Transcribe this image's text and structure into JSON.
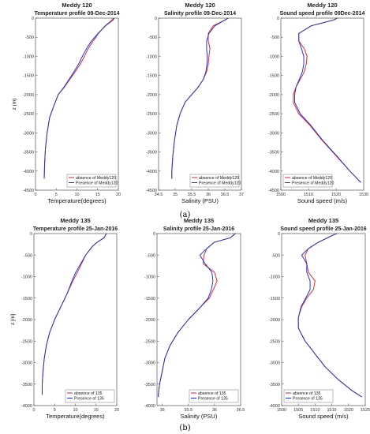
{
  "colors": {
    "absence": "#e0212a",
    "presence": "#1f2bd6",
    "axis": "#555555",
    "background": "#ffffff"
  },
  "captions": [
    "(a)",
    "(b)"
  ],
  "chart_data": [
    {
      "type": "line",
      "suptitle": "Meddy 120",
      "title": "Temperature profile 09-Dec-2014",
      "xlabel": "Temperature(degrees)",
      "ylabel": "z (m)",
      "xlim": [
        0,
        20
      ],
      "ylim": [
        -4500,
        0
      ],
      "xticks": [
        0,
        5,
        10,
        15,
        20
      ],
      "yticks": [
        0,
        -500,
        -1000,
        -1500,
        -2000,
        -2500,
        -3000,
        -3500,
        -4000,
        -4500
      ],
      "legend": "bottom-right",
      "series": [
        {
          "name": "absence of Meddy120",
          "x": [
            18.8,
            18.5,
            16.8,
            15.2,
            13.9,
            12.7,
            11.8,
            10.8,
            9.6,
            8.3,
            7.0,
            5.5,
            4.4,
            3.4,
            2.8,
            2.4,
            2.2,
            2.1
          ],
          "y": [
            0,
            -50,
            -200,
            -400,
            -600,
            -800,
            -1000,
            -1200,
            -1400,
            -1600,
            -1800,
            -2000,
            -2300,
            -2600,
            -3000,
            -3400,
            -3800,
            -4200
          ]
        },
        {
          "name": "Presence of Meddy120",
          "x": [
            19.0,
            18.7,
            16.9,
            15.1,
            13.5,
            12.3,
            11.3,
            10.4,
            9.3,
            8.1,
            6.9,
            5.5,
            4.4,
            3.4,
            2.8,
            2.4,
            2.2,
            2.1
          ],
          "y": [
            0,
            -50,
            -200,
            -400,
            -600,
            -800,
            -1000,
            -1200,
            -1400,
            -1600,
            -1800,
            -2000,
            -2300,
            -2600,
            -3000,
            -3400,
            -3800,
            -4200
          ]
        }
      ]
    },
    {
      "type": "line",
      "suptitle": "Meddy 120",
      "title": "Salinity profile 09-Dec-2014",
      "xlabel": "Salinity (PSU)",
      "ylabel": "",
      "xlim": [
        34.5,
        37
      ],
      "ylim": [
        -4500,
        0
      ],
      "xticks": [
        34.5,
        35,
        35.5,
        36,
        36.5,
        37
      ],
      "yticks": [
        0,
        -500,
        -1000,
        -1500,
        -2000,
        -2500,
        -3000,
        -3500,
        -4000,
        -4500
      ],
      "legend": "bottom-right",
      "series": [
        {
          "name": "absence of Meddy120",
          "x": [
            36.6,
            36.5,
            36.15,
            36.0,
            36.0,
            36.05,
            36.02,
            36.0,
            35.95,
            35.85,
            35.7,
            35.5,
            35.3,
            35.15,
            35.05,
            34.98,
            34.93,
            34.9,
            34.9
          ],
          "y": [
            0,
            -50,
            -200,
            -400,
            -600,
            -800,
            -1000,
            -1200,
            -1400,
            -1600,
            -1800,
            -2000,
            -2200,
            -2500,
            -2800,
            -3200,
            -3600,
            -4000,
            -4200
          ]
        },
        {
          "name": "Presence of Meddy120",
          "x": [
            36.6,
            36.5,
            36.2,
            36.02,
            35.95,
            35.95,
            35.97,
            35.96,
            35.93,
            35.85,
            35.7,
            35.5,
            35.3,
            35.15,
            35.05,
            34.98,
            34.93,
            34.9,
            34.9
          ],
          "y": [
            0,
            -50,
            -200,
            -400,
            -600,
            -800,
            -1000,
            -1200,
            -1400,
            -1600,
            -1800,
            -2000,
            -2200,
            -2500,
            -2800,
            -3200,
            -3600,
            -4000,
            -4200
          ]
        }
      ]
    },
    {
      "type": "line",
      "suptitle": "Meddy 120",
      "title": "Sound speed profile 09Dec-2014",
      "xlabel": "Sound speed (m/s)",
      "ylabel": "",
      "xlim": [
        1500,
        1530
      ],
      "ylim": [
        -4500,
        0
      ],
      "xticks": [
        1500,
        1510,
        1520,
        1530
      ],
      "yticks": [
        0,
        -500,
        -1000,
        -1500,
        -2000,
        -2500,
        -3000,
        -3500,
        -4000,
        -4500
      ],
      "legend": "bottom-left",
      "series": [
        {
          "name": "absence of Meddy120",
          "x": [
            1520.5,
            1519,
            1511,
            1506.5,
            1506.5,
            1508.5,
            1509.5,
            1509.2,
            1508.5,
            1507,
            1505.5,
            1504.5,
            1504.5,
            1506.5,
            1510.5,
            1515,
            1520,
            1525,
            1529
          ],
          "y": [
            0,
            -50,
            -200,
            -400,
            -600,
            -800,
            -1000,
            -1200,
            -1400,
            -1600,
            -1800,
            -2000,
            -2200,
            -2500,
            -2800,
            -3200,
            -3600,
            -4000,
            -4300
          ]
        },
        {
          "name": "Presence of Meddy120",
          "x": [
            1520.5,
            1519,
            1511,
            1506.5,
            1506.5,
            1507.5,
            1508.3,
            1508.3,
            1507.8,
            1506.7,
            1505.5,
            1505,
            1505,
            1507,
            1510.8,
            1515.2,
            1520.2,
            1525,
            1529
          ],
          "y": [
            0,
            -50,
            -200,
            -400,
            -600,
            -800,
            -1000,
            -1200,
            -1400,
            -1600,
            -1800,
            -2000,
            -2200,
            -2500,
            -2800,
            -3200,
            -3600,
            -4000,
            -4300
          ]
        }
      ]
    },
    {
      "type": "line",
      "suptitle": "Meddy 135",
      "title": "Temperature profile 25-Jan-2016",
      "xlabel": "Temperature(degrees)",
      "ylabel": "z [m]",
      "xlim": [
        0,
        20
      ],
      "ylim": [
        -4000,
        0
      ],
      "xticks": [
        0,
        5,
        10,
        15,
        20
      ],
      "yticks": [
        0,
        -500,
        -1000,
        -1500,
        -2000,
        -2500,
        -3000,
        -3500,
        -4000
      ],
      "legend": "bottom-right",
      "series": [
        {
          "name": "absence of 135",
          "x": [
            17.5,
            16.9,
            15.3,
            14.1,
            12.5,
            11.5,
            10.5,
            9.4,
            8.0,
            6.5,
            5.0,
            3.8,
            3.0,
            2.5,
            2.2,
            2.0,
            2.0
          ],
          "y": [
            0,
            -100,
            -200,
            -300,
            -500,
            -700,
            -900,
            -1100,
            -1400,
            -1700,
            -2000,
            -2300,
            -2600,
            -2900,
            -3200,
            -3500,
            -3750
          ]
        },
        {
          "name": "Presence of 135",
          "x": [
            17.5,
            16.9,
            15.3,
            14.1,
            12.5,
            11.3,
            10.1,
            9.2,
            8.0,
            6.5,
            5.0,
            3.8,
            3.0,
            2.5,
            2.2,
            2.0,
            2.0
          ],
          "y": [
            0,
            -100,
            -200,
            -300,
            -500,
            -700,
            -900,
            -1100,
            -1400,
            -1700,
            -2000,
            -2300,
            -2600,
            -2900,
            -3200,
            -3500,
            -3750
          ]
        }
      ]
    },
    {
      "type": "line",
      "suptitle": "Meddy 135",
      "title": "Salinity profile 25-Jan-2016",
      "xlabel": "Salinity (PSU)",
      "ylabel": "",
      "xlim": [
        34.9,
        36.5
      ],
      "ylim": [
        -4000,
        0
      ],
      "xticks": [
        35,
        35.5,
        36,
        36.5
      ],
      "yticks": [
        0,
        -500,
        -1000,
        -1500,
        -2000,
        -2500,
        -3000,
        -3500,
        -4000
      ],
      "legend": "bottom-right",
      "series": [
        {
          "name": "absence of 135",
          "x": [
            36.4,
            36.3,
            36.0,
            35.85,
            35.8,
            35.78,
            36.0,
            36.05,
            35.98,
            35.9,
            35.7,
            35.5,
            35.3,
            35.15,
            35.05,
            35.0,
            34.95,
            34.93,
            34.92
          ],
          "y": [
            0,
            -100,
            -200,
            -350,
            -500,
            -700,
            -900,
            -1100,
            -1300,
            -1500,
            -1750,
            -2000,
            -2300,
            -2600,
            -2900,
            -3200,
            -3500,
            -3700,
            -3800
          ]
        },
        {
          "name": "Presence of 135",
          "x": [
            36.4,
            36.3,
            36.0,
            35.85,
            35.72,
            35.82,
            35.95,
            35.97,
            35.94,
            35.88,
            35.7,
            35.5,
            35.3,
            35.15,
            35.05,
            35.0,
            34.95,
            34.93,
            34.92
          ],
          "y": [
            0,
            -100,
            -200,
            -350,
            -500,
            -700,
            -900,
            -1100,
            -1300,
            -1500,
            -1750,
            -2000,
            -2300,
            -2600,
            -2900,
            -3200,
            -3500,
            -3700,
            -3800
          ]
        }
      ]
    },
    {
      "type": "line",
      "suptitle": "Meddy 135",
      "title": "Sound speed profile 25-Jan-2016",
      "xlabel": "Sound speed (m/s)",
      "ylabel": "",
      "xlim": [
        1500,
        1525
      ],
      "ylim": [
        -4000,
        0
      ],
      "xticks": [
        1500,
        1505,
        1510,
        1515,
        1520,
        1525
      ],
      "yticks": [
        0,
        -500,
        -1000,
        -1500,
        -2000,
        -2500,
        -3000,
        -3500,
        -4000
      ],
      "legend": "bottom-left",
      "series": [
        {
          "name": "absence of 135",
          "x": [
            1516.5,
            1515,
            1511,
            1508,
            1507,
            1507.5,
            1508,
            1510,
            1509.5,
            1507.5,
            1506,
            1505,
            1505,
            1507,
            1510,
            1513,
            1517,
            1521,
            1524
          ],
          "y": [
            0,
            -50,
            -200,
            -350,
            -500,
            -700,
            -900,
            -1100,
            -1300,
            -1500,
            -1700,
            -1950,
            -2200,
            -2500,
            -2800,
            -3100,
            -3400,
            -3650,
            -3800
          ]
        },
        {
          "name": "Presence of 135",
          "x": [
            1516.5,
            1515,
            1511,
            1508,
            1506,
            1507.5,
            1507.5,
            1508.5,
            1508.5,
            1507.2,
            1505.8,
            1505,
            1505,
            1507,
            1510,
            1513,
            1517,
            1521,
            1524
          ],
          "y": [
            0,
            -50,
            -200,
            -350,
            -500,
            -700,
            -900,
            -1100,
            -1300,
            -1500,
            -1700,
            -1950,
            -2200,
            -2500,
            -2800,
            -3100,
            -3400,
            -3650,
            -3800
          ]
        }
      ]
    }
  ]
}
